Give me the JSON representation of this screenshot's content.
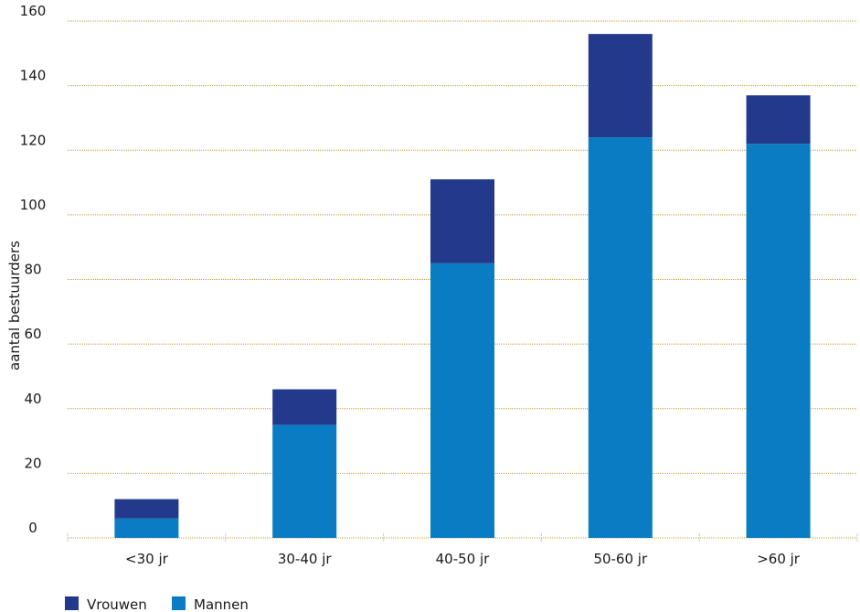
{
  "chart_data": {
    "type": "bar",
    "stacked": true,
    "categories": [
      "<30 jr",
      "30-40 jr",
      "40-50 jr",
      "50-60 jr",
      ">60 jr"
    ],
    "series": [
      {
        "name": "Mannen",
        "values": [
          6,
          35,
          85,
          124,
          122
        ],
        "color": "#0a7cc4"
      },
      {
        "name": "Vrouwen",
        "values": [
          6,
          11,
          26,
          32,
          15
        ],
        "color": "#233a8c"
      }
    ],
    "ylabel": "aantal bestuurders",
    "xlabel": "",
    "title": "",
    "ylim": [
      0,
      160
    ],
    "yticks": [
      0,
      20,
      40,
      60,
      80,
      100,
      120,
      140,
      160
    ],
    "grid": true,
    "grid_color": "#c8a040",
    "legend_position": "bottom-left",
    "legend_order": [
      "Vrouwen",
      "Mannen"
    ]
  }
}
